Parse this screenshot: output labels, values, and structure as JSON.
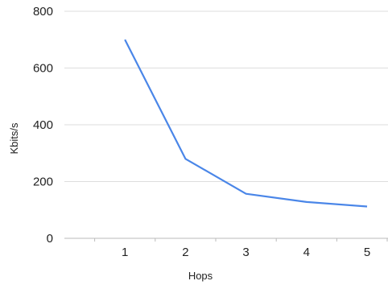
{
  "chart_data": {
    "type": "line",
    "xlabel": "Hops",
    "ylabel": "Kbits/s",
    "x": [
      1,
      2,
      3,
      4,
      5
    ],
    "xlim": [
      0,
      5
    ],
    "ylim": [
      0,
      800
    ],
    "yticks": [
      0,
      200,
      400,
      600,
      800
    ],
    "series": [
      {
        "values": [
          700,
          280,
          157,
          128,
          112
        ]
      }
    ],
    "grid": true,
    "legend": "none",
    "colors": {
      "line": "#4a86e8",
      "grid": "#dddddd",
      "axis": "#bbbbbb",
      "text": "#222222"
    }
  }
}
